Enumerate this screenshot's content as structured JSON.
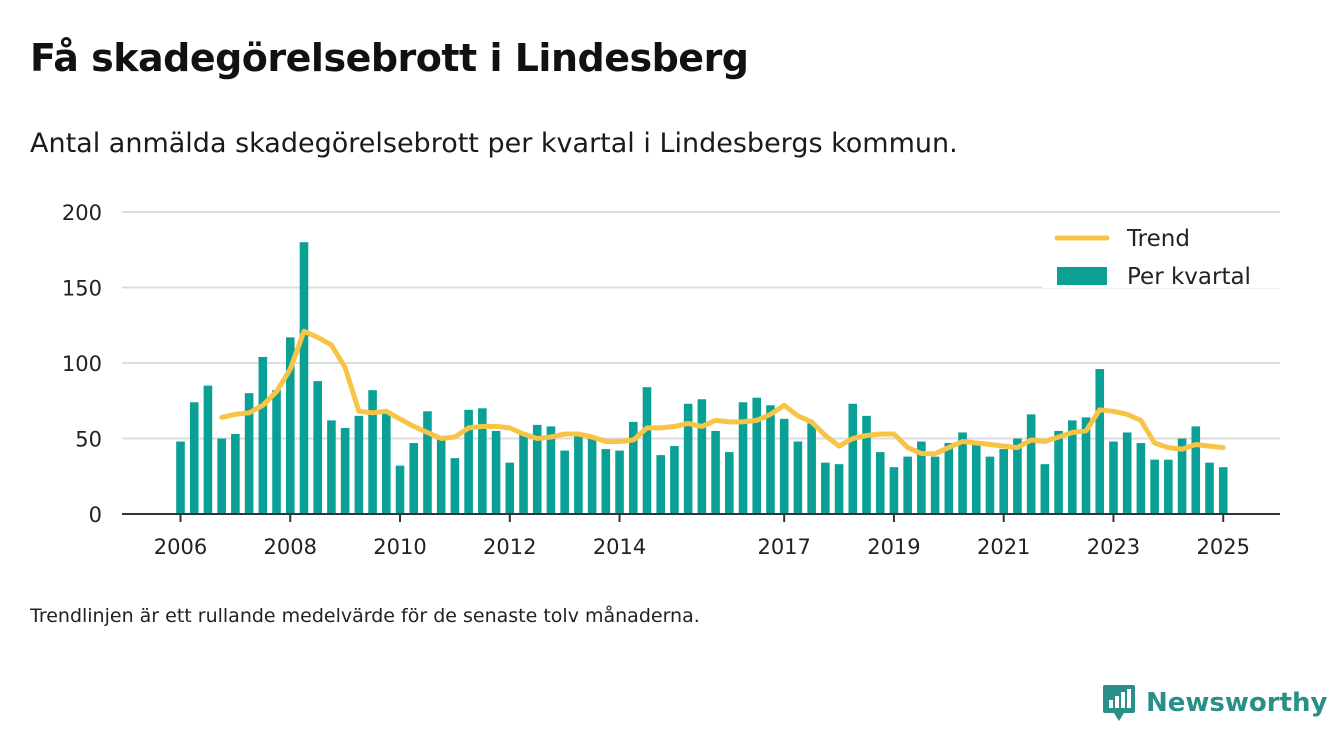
{
  "title": "Få skadegörelsebrott i Lindesberg",
  "subtitle": "Antal anmälda skadegörelsebrott per kvartal i Lindesbergs kommun.",
  "note": "Trendlinjen är ett rullande medelvärde för de senaste tolv månaderna.",
  "brand": {
    "name": "Newsworthy",
    "icon": "newsworthy-bar-chart-logo-icon"
  },
  "colors": {
    "bars": "#0aa096",
    "trend": "#f8c446",
    "grid": "#dddddd",
    "axis": "#333333"
  },
  "chart_data": {
    "type": "bar",
    "xlabel": "",
    "ylabel": "",
    "ylim": [
      0,
      200
    ],
    "yticks": [
      0,
      50,
      100,
      150,
      200
    ],
    "xticks": [
      "2006",
      "2008",
      "2010",
      "2012",
      "2014",
      "2017",
      "2019",
      "2021",
      "2023",
      "2025"
    ],
    "grid": true,
    "legend_position": "top-right",
    "legend": [
      "Trend",
      "Per kvartal"
    ],
    "x_start": "2006 Q1",
    "series": [
      {
        "name": "Per kvartal",
        "type": "bar",
        "values": [
          48,
          74,
          85,
          50,
          53,
          80,
          104,
          82,
          117,
          180,
          88,
          62,
          57,
          65,
          82,
          68,
          32,
          47,
          68,
          50,
          37,
          69,
          70,
          55,
          34,
          53,
          59,
          58,
          42,
          52,
          50,
          43,
          42,
          61,
          84,
          39,
          45,
          73,
          76,
          55,
          41,
          74,
          77,
          72,
          63,
          48,
          60,
          34,
          33,
          73,
          65,
          41,
          31,
          38,
          48,
          38,
          47,
          54,
          48,
          38,
          43,
          50,
          66,
          33,
          55,
          62,
          64,
          96,
          48,
          54,
          47,
          36,
          36,
          50,
          58,
          34,
          31
        ]
      },
      {
        "name": "Trend",
        "type": "line",
        "values": [
          null,
          null,
          null,
          64,
          66,
          67,
          72,
          81,
          96,
          121,
          117,
          112,
          97,
          68,
          67,
          68,
          63,
          58,
          54,
          50,
          51,
          57,
          58,
          58,
          57,
          53,
          50,
          51,
          53,
          53,
          51,
          48,
          48,
          49,
          57,
          57,
          58,
          60,
          58,
          62,
          61,
          61,
          62,
          66,
          72,
          65,
          61,
          52,
          45,
          50,
          52,
          53,
          53,
          44,
          40,
          40,
          44,
          48,
          47,
          46,
          45,
          44,
          49,
          48,
          51,
          54,
          55,
          69,
          68,
          66,
          62,
          47,
          44,
          43,
          46,
          45,
          44
        ]
      }
    ]
  }
}
